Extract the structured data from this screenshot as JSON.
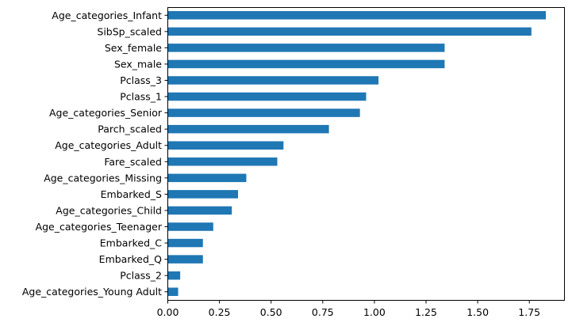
{
  "chart_data": {
    "type": "bar",
    "orientation": "horizontal",
    "title": "",
    "xlabel": "",
    "ylabel": "",
    "xlim": [
      0,
      1.92
    ],
    "xticks": [
      0.0,
      0.25,
      0.5,
      0.75,
      1.0,
      1.25,
      1.5,
      1.75
    ],
    "xtick_labels": [
      "0.00",
      "0.25",
      "0.50",
      "0.75",
      "1.00",
      "1.25",
      "1.50",
      "1.75"
    ],
    "grid": false,
    "legend": "none",
    "bar_color": "#1f77b4",
    "categories": [
      "Age_categories_Infant",
      "SibSp_scaled",
      "Sex_female",
      "Sex_male",
      "Pclass_3",
      "Pclass_1",
      "Age_categories_Senior",
      "Parch_scaled",
      "Age_categories_Adult",
      "Fare_scaled",
      "Age_categories_Missing",
      "Embarked_S",
      "Age_categories_Child",
      "Age_categories_Teenager",
      "Embarked_C",
      "Embarked_Q",
      "Pclass_2",
      "Age_categories_Young Adult"
    ],
    "values": [
      1.83,
      1.76,
      1.34,
      1.34,
      1.02,
      0.96,
      0.93,
      0.78,
      0.56,
      0.53,
      0.38,
      0.34,
      0.31,
      0.22,
      0.17,
      0.17,
      0.06,
      0.05
    ]
  }
}
